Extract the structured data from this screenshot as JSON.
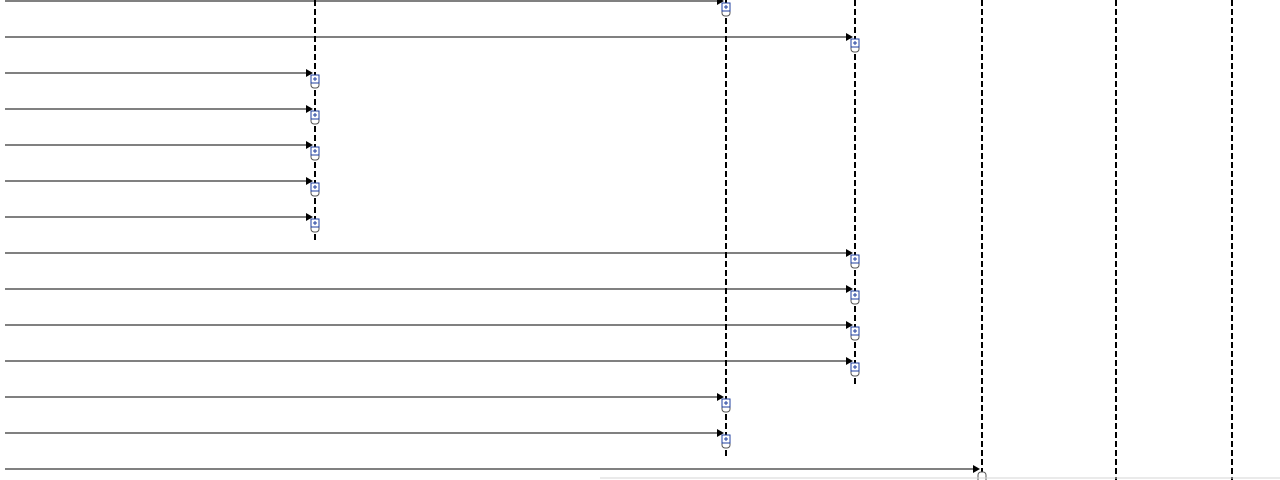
{
  "diagram": {
    "kind": "sequence-diagram",
    "lifelines": [
      {
        "id": "L1",
        "style": "dashed"
      },
      {
        "id": "L2",
        "style": "dashed"
      },
      {
        "id": "L3",
        "style": "dashed"
      },
      {
        "id": "L4",
        "style": "dashed"
      },
      {
        "id": "L5",
        "style": "dashed"
      },
      {
        "id": "L6",
        "style": "dashed"
      }
    ],
    "messages": [
      {
        "to": "L2",
        "expandable": true
      },
      {
        "to": "L3",
        "expandable": true
      },
      {
        "to": "L1",
        "expandable": true
      },
      {
        "to": "L1",
        "expandable": true
      },
      {
        "to": "L1",
        "expandable": true
      },
      {
        "to": "L1",
        "expandable": true
      },
      {
        "to": "L1",
        "expandable": true
      },
      {
        "to": "L3",
        "expandable": true
      },
      {
        "to": "L3",
        "expandable": true
      },
      {
        "to": "L3",
        "expandable": true
      },
      {
        "to": "L3",
        "expandable": true
      },
      {
        "to": "L2",
        "expandable": true
      },
      {
        "to": "L2",
        "expandable": true
      },
      {
        "to": "L4",
        "expandable": false
      }
    ],
    "colors": {
      "line": "#000000",
      "expand_icon": "#1f3f9f",
      "background": "#ffffff"
    }
  }
}
